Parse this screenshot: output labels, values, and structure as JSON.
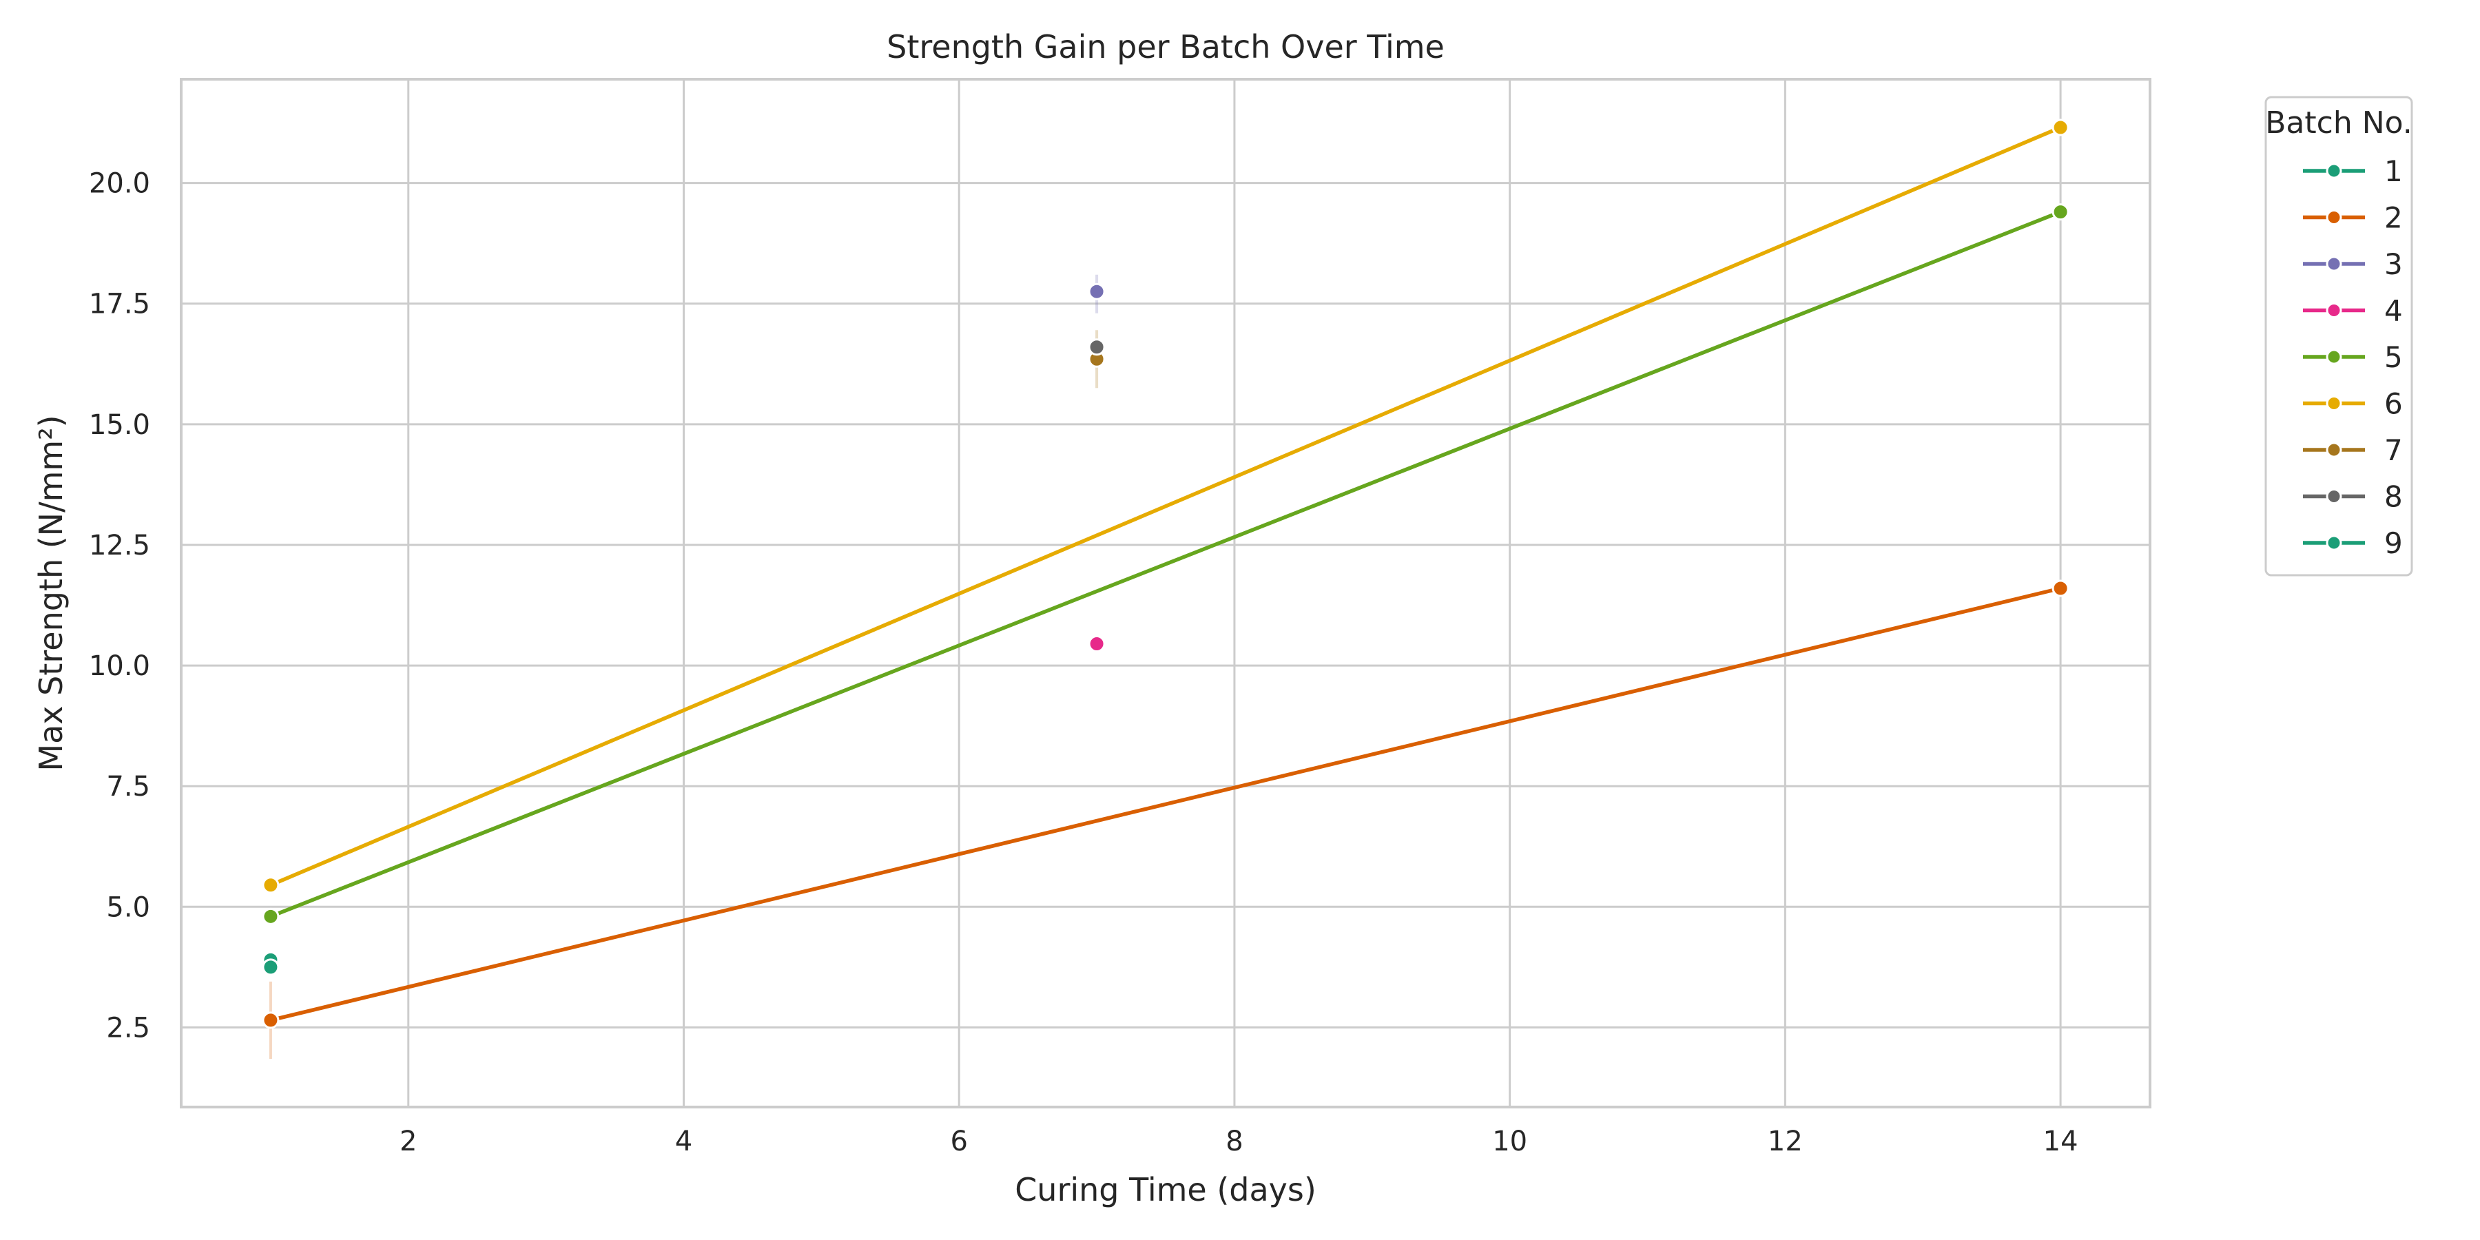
{
  "chart_data": {
    "type": "line",
    "title": "Strength Gain per Batch Over Time",
    "xlabel": "Curing Time (days)",
    "ylabel": "Max Strength (N/mm²)",
    "xlim": [
      0.35,
      14.65
    ],
    "ylim": [
      0.85,
      22.15
    ],
    "xticks": [
      2,
      4,
      6,
      8,
      10,
      12,
      14
    ],
    "xtick_labels": [
      "2",
      "4",
      "6",
      "8",
      "10",
      "12",
      "14"
    ],
    "yticks": [
      2.5,
      5.0,
      7.5,
      10.0,
      12.5,
      15.0,
      17.5,
      20.0
    ],
    "ytick_labels": [
      "2.5",
      "5.0",
      "7.5",
      "10.0",
      "12.5",
      "15.0",
      "17.5",
      "20.0"
    ],
    "grid": true,
    "legend": {
      "title": "Batch No.",
      "placement": "outside-top-right"
    },
    "series": [
      {
        "name": "1",
        "color": "#1b9e77",
        "points": [
          {
            "x": 1,
            "y": 3.9
          }
        ]
      },
      {
        "name": "2",
        "color": "#d95f02",
        "points": [
          {
            "x": 1,
            "y": 2.65
          },
          {
            "x": 14,
            "y": 11.6
          }
        ],
        "error_bars": [
          {
            "x": 1,
            "low": 1.85,
            "high": 3.45
          }
        ]
      },
      {
        "name": "3",
        "color": "#7570b3",
        "points": [
          {
            "x": 7,
            "y": 17.75
          }
        ],
        "error_bars": [
          {
            "x": 7,
            "low": 17.3,
            "high": 18.1
          }
        ]
      },
      {
        "name": "4",
        "color": "#e7298a",
        "points": [
          {
            "x": 7,
            "y": 10.45
          }
        ]
      },
      {
        "name": "5",
        "color": "#66a61e",
        "points": [
          {
            "x": 1,
            "y": 4.8
          },
          {
            "x": 14,
            "y": 19.4
          }
        ]
      },
      {
        "name": "6",
        "color": "#e6ab02",
        "points": [
          {
            "x": 1,
            "y": 5.45
          },
          {
            "x": 14,
            "y": 21.15
          }
        ]
      },
      {
        "name": "7",
        "color": "#a6761d",
        "points": [
          {
            "x": 7,
            "y": 16.35
          }
        ],
        "error_bars": [
          {
            "x": 7,
            "low": 15.75,
            "high": 16.95
          }
        ]
      },
      {
        "name": "8",
        "color": "#666666",
        "points": [
          {
            "x": 7,
            "y": 16.6
          }
        ]
      },
      {
        "name": "9",
        "color": "#1b9e77",
        "points": [
          {
            "x": 1,
            "y": 3.75
          }
        ]
      }
    ]
  }
}
